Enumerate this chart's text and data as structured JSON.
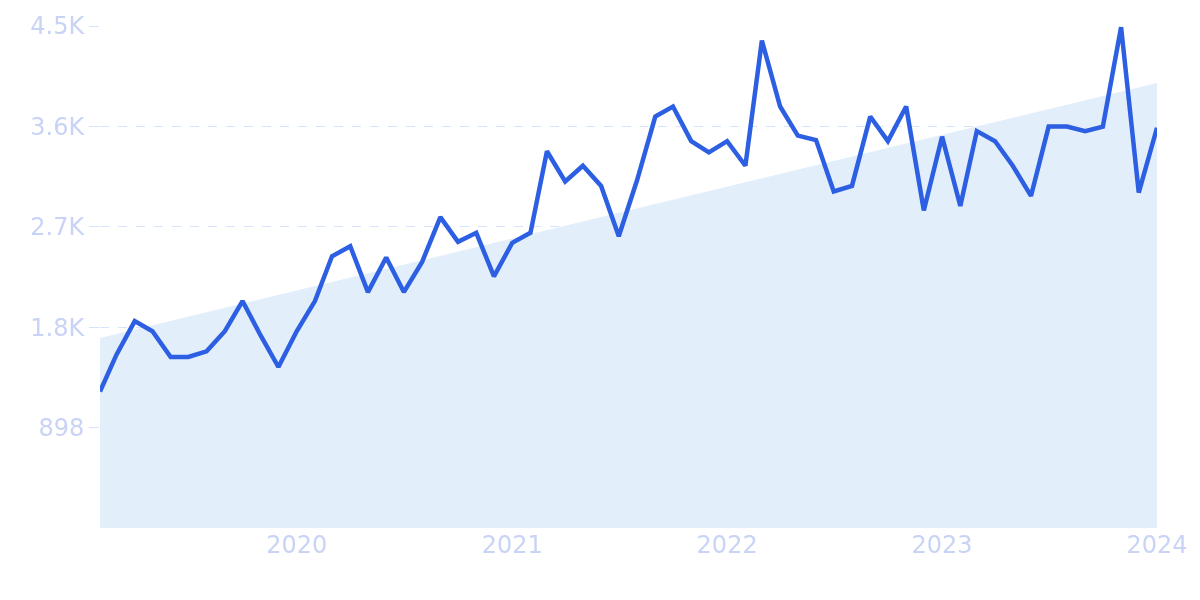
{
  "chart_data": {
    "type": "line",
    "x": [
      "2019-02",
      "2019-03",
      "2019-04",
      "2019-05",
      "2019-06",
      "2019-07",
      "2019-08",
      "2019-09",
      "2019-10",
      "2019-11",
      "2019-12",
      "2020-01",
      "2020-02",
      "2020-03",
      "2020-04",
      "2020-05",
      "2020-06",
      "2020-07",
      "2020-08",
      "2020-09",
      "2020-10",
      "2020-11",
      "2020-12",
      "2021-01",
      "2021-02",
      "2021-03",
      "2021-04",
      "2021-05",
      "2021-06",
      "2021-07",
      "2021-08",
      "2021-09",
      "2021-10",
      "2021-11",
      "2021-12",
      "2022-01",
      "2022-02",
      "2022-03",
      "2022-04",
      "2022-05",
      "2022-06",
      "2022-07",
      "2022-08",
      "2022-09",
      "2022-10",
      "2022-11",
      "2022-12",
      "2023-01",
      "2023-02",
      "2023-03",
      "2023-04",
      "2023-05",
      "2023-06",
      "2023-07",
      "2023-08",
      "2023-09",
      "2023-10",
      "2023-11",
      "2023-12",
      "2024-01"
    ],
    "series": [
      {
        "type": "area",
        "color": "#e3eefb",
        "x": [
          "2019-02",
          "2024-01"
        ],
        "values": [
          1700,
          3980
        ]
      },
      {
        "color": "#2d5fe3",
        "values": [
          1220,
          1550,
          1850,
          1760,
          1530,
          1530,
          1580,
          1760,
          2030,
          1720,
          1440,
          1760,
          2030,
          2430,
          2520,
          2110,
          2420,
          2110,
          2380,
          2780,
          2560,
          2640,
          2250,
          2550,
          2640,
          3370,
          3100,
          3240,
          3060,
          2610,
          3110,
          3680,
          3770,
          3460,
          3360,
          3460,
          3240,
          4360,
          3770,
          3510,
          3470,
          3010,
          3060,
          3680,
          3460,
          3770,
          2840,
          3500,
          2880,
          3550,
          3460,
          3240,
          2970,
          3590,
          3590,
          3550,
          3590,
          4480,
          3000,
          3580
        ]
      }
    ],
    "xlim": [
      "2019-02",
      "2024-01"
    ],
    "xticks": [
      {
        "value": "2020-01",
        "label": "2020"
      },
      {
        "value": "2021-01",
        "label": "2021"
      },
      {
        "value": "2022-01",
        "label": "2022"
      },
      {
        "value": "2023-01",
        "label": "2023"
      },
      {
        "value": "2024-01",
        "label": "2024"
      }
    ],
    "ylim": [
      0,
      4490
    ],
    "yticks": [
      898,
      {
        "value": 1796,
        "label": "1.8K"
      },
      {
        "value": 2694,
        "label": "2.7K"
      },
      {
        "value": 3592,
        "label": "3.6K"
      },
      {
        "value": 4490,
        "label": "4.5K"
      }
    ],
    "grid": "y",
    "marker": "none",
    "line_style": "solid"
  }
}
